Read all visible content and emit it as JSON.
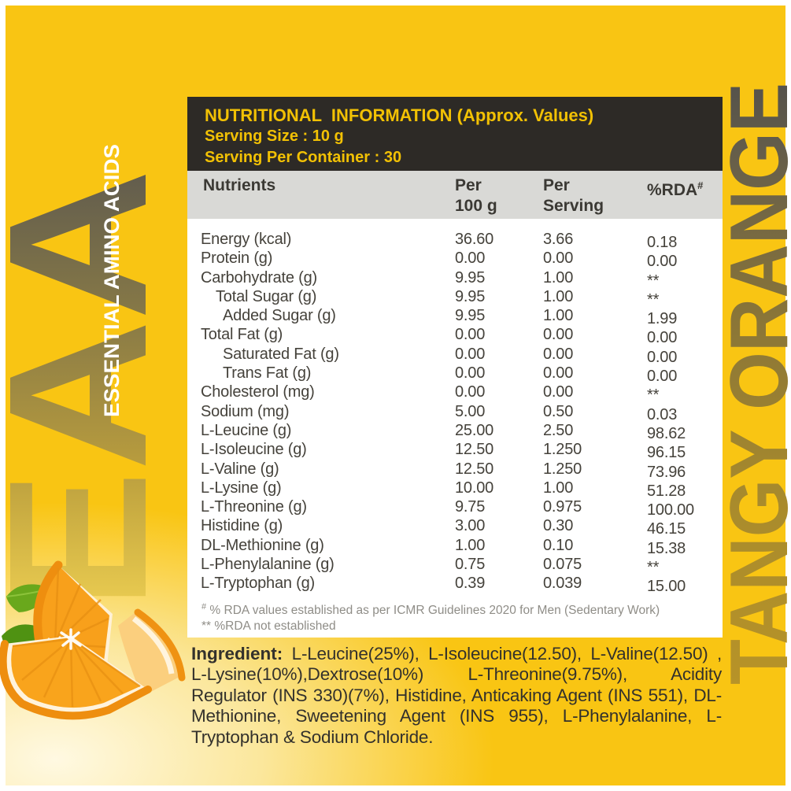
{
  "side": {
    "eaa": "EAA",
    "essential": "ESSENTIAL AMINO ACIDS",
    "flavor": "TANGY ORANGE"
  },
  "header": {
    "title": "NUTRITIONAL  INFORMATION (Approx. Values)",
    "serving_size": "Serving Size : 10 g",
    "serving_per_container": "Serving Per Container : 30"
  },
  "columns": {
    "nutrients": "Nutrients",
    "per100_l1": "Per",
    "per100_l2": "100 g",
    "serving_l1": "Per",
    "serving_l2": "Serving",
    "rda": "%RDA",
    "rda_sup": "#"
  },
  "rows": [
    {
      "name": "Energy (kcal)",
      "indent": 0,
      "per100": "36.60",
      "perServing": "3.66",
      "rda": "0.18"
    },
    {
      "name": "Protein (g)",
      "indent": 0,
      "per100": "0.00",
      "perServing": "0.00",
      "rda": "0.00"
    },
    {
      "name": "Carbohydrate (g)",
      "indent": 0,
      "per100": "9.95",
      "perServing": "1.00",
      "rda": "**"
    },
    {
      "name": "Total Sugar (g)",
      "indent": 1,
      "per100": "9.95",
      "perServing": "1.00",
      "rda": "**"
    },
    {
      "name": "Added Sugar (g)",
      "indent": 2,
      "per100": "9.95",
      "perServing": "1.00",
      "rda": "1.99"
    },
    {
      "name": "Total Fat (g)",
      "indent": 0,
      "per100": "0.00",
      "perServing": "0.00",
      "rda": "0.00"
    },
    {
      "name": "Saturated Fat (g)",
      "indent": 2,
      "per100": "0.00",
      "perServing": "0.00",
      "rda": "0.00"
    },
    {
      "name": "Trans Fat (g)",
      "indent": 2,
      "per100": "0.00",
      "perServing": "0.00",
      "rda": "0.00"
    },
    {
      "name": "Cholesterol (mg)",
      "indent": 0,
      "per100": "0.00",
      "perServing": "0.00",
      "rda": "**"
    },
    {
      "name": "Sodium (mg)",
      "indent": 0,
      "per100": "5.00",
      "perServing": "0.50",
      "rda": "0.03"
    },
    {
      "name": "L-Leucine (g)",
      "indent": 0,
      "per100": "25.00",
      "perServing": "2.50",
      "rda": "98.62"
    },
    {
      "name": "L-Isoleucine (g)",
      "indent": 0,
      "per100": "12.50",
      "perServing": "1.250",
      "rda": "96.15"
    },
    {
      "name": "L-Valine (g)",
      "indent": 0,
      "per100": "12.50",
      "perServing": "1.250",
      "rda": "73.96"
    },
    {
      "name": "L-Lysine (g)",
      "indent": 0,
      "per100": "10.00",
      "perServing": "1.00",
      "rda": "51.28"
    },
    {
      "name": "L-Threonine (g)",
      "indent": 0,
      "per100": "9.75",
      "perServing": "0.975",
      "rda": "100.00"
    },
    {
      "name": "Histidine (g)",
      "indent": 0,
      "per100": "3.00",
      "perServing": "0.30",
      "rda": "46.15"
    },
    {
      "name": "DL-Methionine (g)",
      "indent": 0,
      "per100": "1.00",
      "perServing": "0.10",
      "rda": "15.38"
    },
    {
      "name": "L-Phenylalanine (g)",
      "indent": 0,
      "per100": "0.75",
      "perServing": "0.075",
      "rda": "**"
    },
    {
      "name": "L-Tryptophan (g)",
      "indent": 0,
      "per100": "0.39",
      "perServing": "0.039",
      "rda": "15.00"
    }
  ],
  "footnotes": {
    "sup": "#",
    "line1": " % RDA values established as per ICMR Guidelines 2020 for Men (Sedentary Work)",
    "line2": "** %RDA not established"
  },
  "ingredients": {
    "label": "Ingredient:",
    "text": " L-Leucine(25%), L-Isoleucine(12.50), L-Valine(12.50) , L-Lysine(10%),Dextrose(10%) L-Threonine(9.75%), Acidity Regulator (INS 330)(7%), Histidine, Anticaking Agent (INS 551), DL-Methionine, Sweetening Agent (INS 955), L-Phenylalanine, L-Tryptophan & Sodium Chloride."
  },
  "colors": {
    "background_yellow": "#F9C513",
    "panel_dark": "#2D2A26",
    "panel_yellow_text": "#F2C104",
    "column_header_gray": "#D9D9D6",
    "body_text": "#45423B",
    "footnote_gray": "#8F8D87",
    "flavor_gradient_dark": "#55524B",
    "flavor_gradient_gold": "#B79328",
    "rind_orange": "#EE8E0F",
    "flesh_orange": "#F9A41C",
    "leaf_green": "#5C9E1B"
  }
}
